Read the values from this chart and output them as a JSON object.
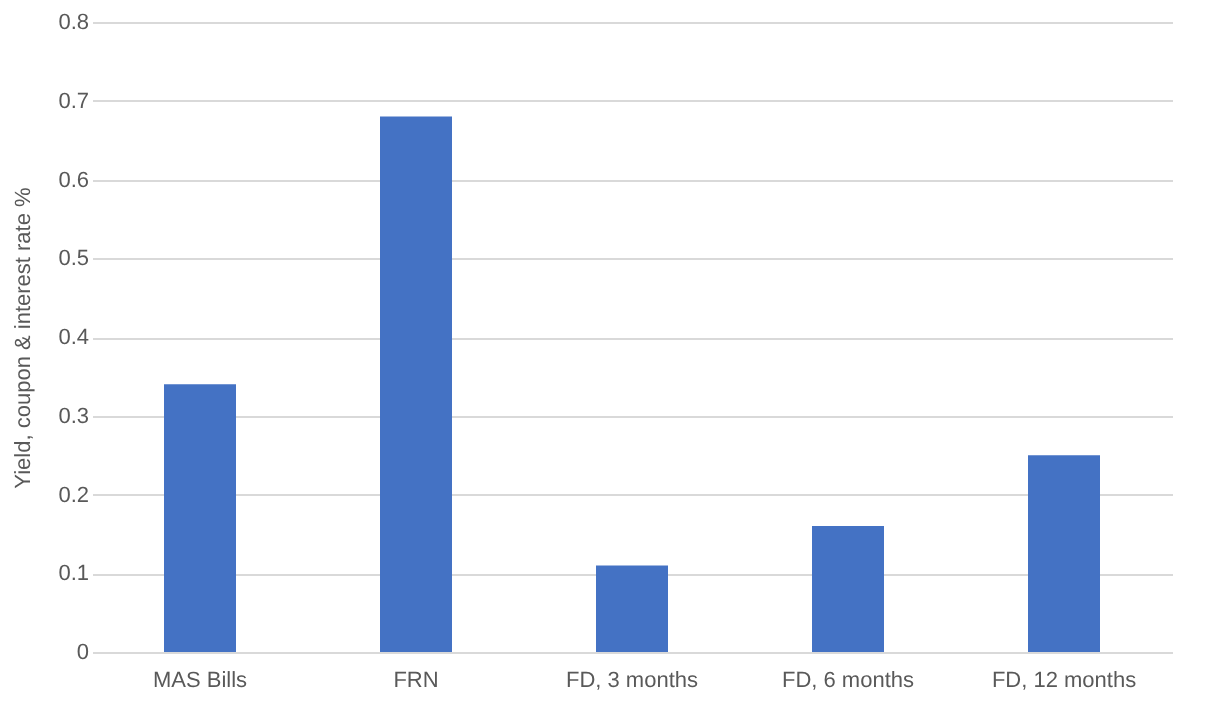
{
  "chart_data": {
    "type": "bar",
    "ylabel": "Yield, coupon & interest rate %",
    "categories": [
      "MAS Bills",
      "FRN",
      "FD, 3 months",
      "FD, 6 months",
      "FD, 12 months"
    ],
    "values": [
      0.34,
      0.68,
      0.11,
      0.16,
      0.25
    ],
    "color": "#4472c4",
    "ylim": [
      0,
      0.8
    ],
    "yticks": [
      0,
      0.1,
      0.2,
      0.3,
      0.4,
      0.5,
      0.6,
      0.7,
      0.8
    ],
    "grid": "y"
  }
}
